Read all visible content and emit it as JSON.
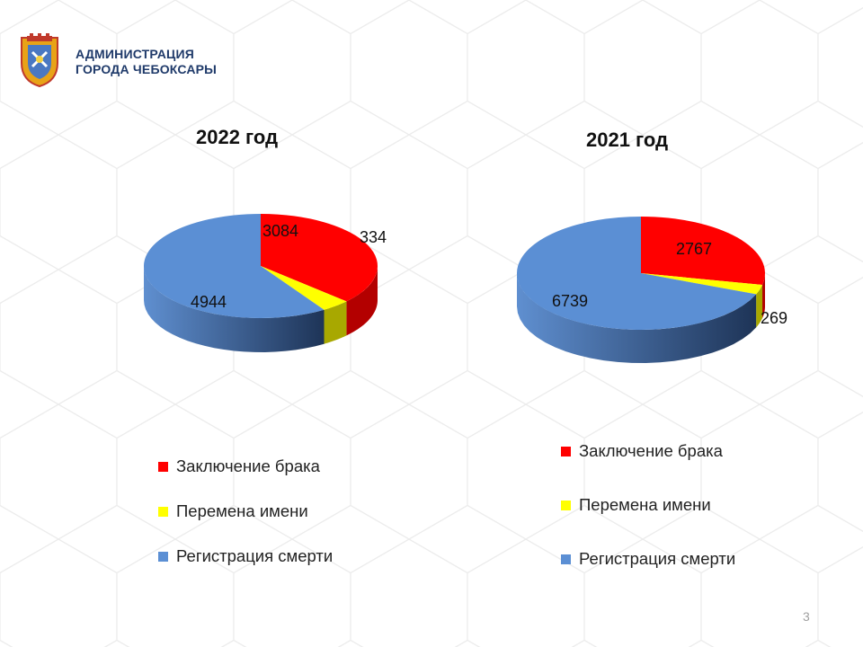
{
  "header": {
    "org_line1": "АДМИНИСТРАЦИЯ",
    "org_line2": "ГОРОДА ЧЕБОКСАРЫ"
  },
  "page_number": "3",
  "colors": {
    "marriage": "#ff0000",
    "name_change": "#ffff00",
    "death": "#5b8fd4",
    "title_text": "#1f3a6a"
  },
  "icons": [
    "city-emblem-icon"
  ],
  "chart_data": [
    {
      "type": "pie",
      "title": "2022 год",
      "categories": [
        "Заключение брака",
        "Перемена имени",
        "Регистрация смерти"
      ],
      "values": [
        3084,
        334,
        4944
      ],
      "labels": [
        "3084",
        "334",
        "4944"
      ],
      "legend_position": "bottom"
    },
    {
      "type": "pie",
      "title": "2021 год",
      "categories": [
        "Заключение брака",
        "Перемена имени",
        "Регистрация смерти"
      ],
      "values": [
        2767,
        269,
        6739
      ],
      "labels": [
        "2767",
        "269",
        "6739"
      ],
      "legend_position": "bottom"
    }
  ]
}
